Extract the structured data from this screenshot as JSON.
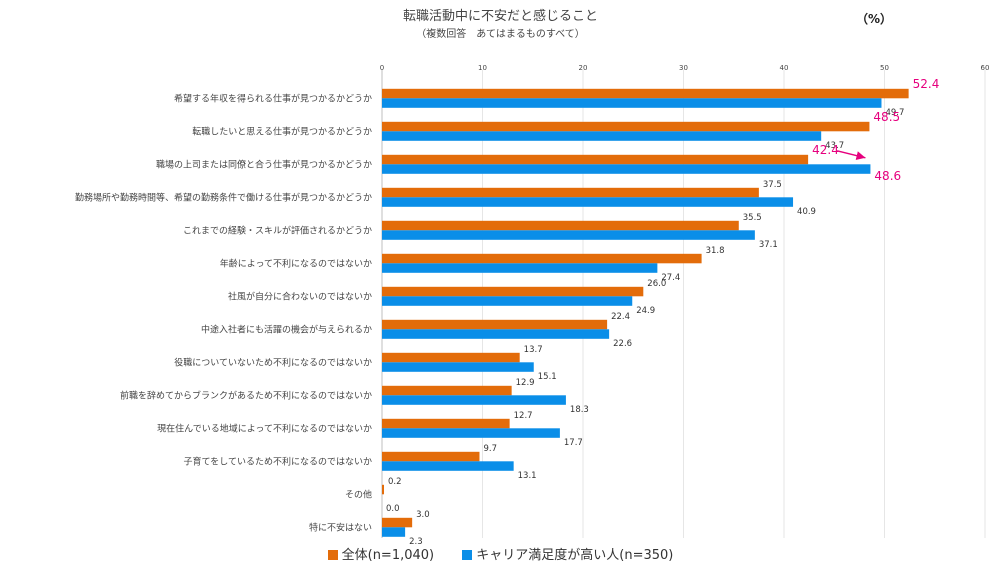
{
  "chart_data": {
    "type": "bar",
    "orientation": "horizontal",
    "title": "転職活動中に不安だと感じること",
    "subtitle": "（複数回答　あてはまるものすべて）",
    "unit_label": "（%）",
    "xlim": [
      0,
      60
    ],
    "xticks": [
      "0",
      "10",
      "20",
      "30",
      "40",
      "50",
      "60"
    ],
    "grid": true,
    "legend_position": "bottom",
    "categories": [
      "希望する年収を得られる仕事が見つかるかどうか",
      "転職したいと思える仕事が見つかるかどうか",
      "職場の上司または同僚と合う仕事が見つかるかどうか",
      "勤務場所や勤務時間等、希望の勤務条件で働ける仕事が見つかるかどうか",
      "これまでの経験・スキルが評価されるかどうか",
      "年齢によって不利になるのではないか",
      "社風が自分に合わないのではないか",
      "中途入社者にも活躍の機会が与えられるか",
      "役職についていないため不利になるのではないか",
      "前職を辞めてからブランクがあるため不利になるのではないか",
      "現在住んでいる地域によって不利になるのではないか",
      "子育てをしているため不利になるのではないか",
      "その他",
      "特に不安はない"
    ],
    "series": [
      {
        "name": "全体(n=1,040)",
        "color": "#E36C0A",
        "values": [
          52.4,
          48.5,
          42.4,
          37.5,
          35.5,
          31.8,
          26.0,
          22.4,
          13.7,
          12.9,
          12.7,
          9.7,
          0.2,
          3.0
        ],
        "labels": [
          "52.4",
          "48.5",
          "42.4",
          "37.5",
          "35.5",
          "31.8",
          "26.0",
          "22.4",
          "13.7",
          "12.9",
          "12.7",
          "9.7",
          "0.2",
          "3.0"
        ]
      },
      {
        "name": "キャリア満足度が高い人(n=350)",
        "color": "#0A8EE8",
        "values": [
          49.7,
          43.7,
          48.6,
          40.9,
          37.1,
          27.4,
          24.9,
          22.6,
          15.1,
          18.3,
          17.7,
          13.1,
          0.0,
          2.3
        ],
        "labels": [
          "49.7",
          "43.7",
          "48.6",
          "40.9",
          "37.1",
          "27.4",
          "24.9",
          "22.6",
          "15.1",
          "18.3",
          "17.7",
          "13.1",
          "0.0",
          "2.3"
        ]
      }
    ],
    "highlight": {
      "color": "#E6007E",
      "labels": [
        {
          "category_index": 0,
          "series_index": 0
        },
        {
          "category_index": 1,
          "series_index": 0
        },
        {
          "category_index": 2,
          "series_index": 0
        },
        {
          "category_index": 2,
          "series_index": 1
        }
      ],
      "arrow": {
        "category_index": 2,
        "from_value": 42.4,
        "to_value": 48.6
      }
    }
  }
}
